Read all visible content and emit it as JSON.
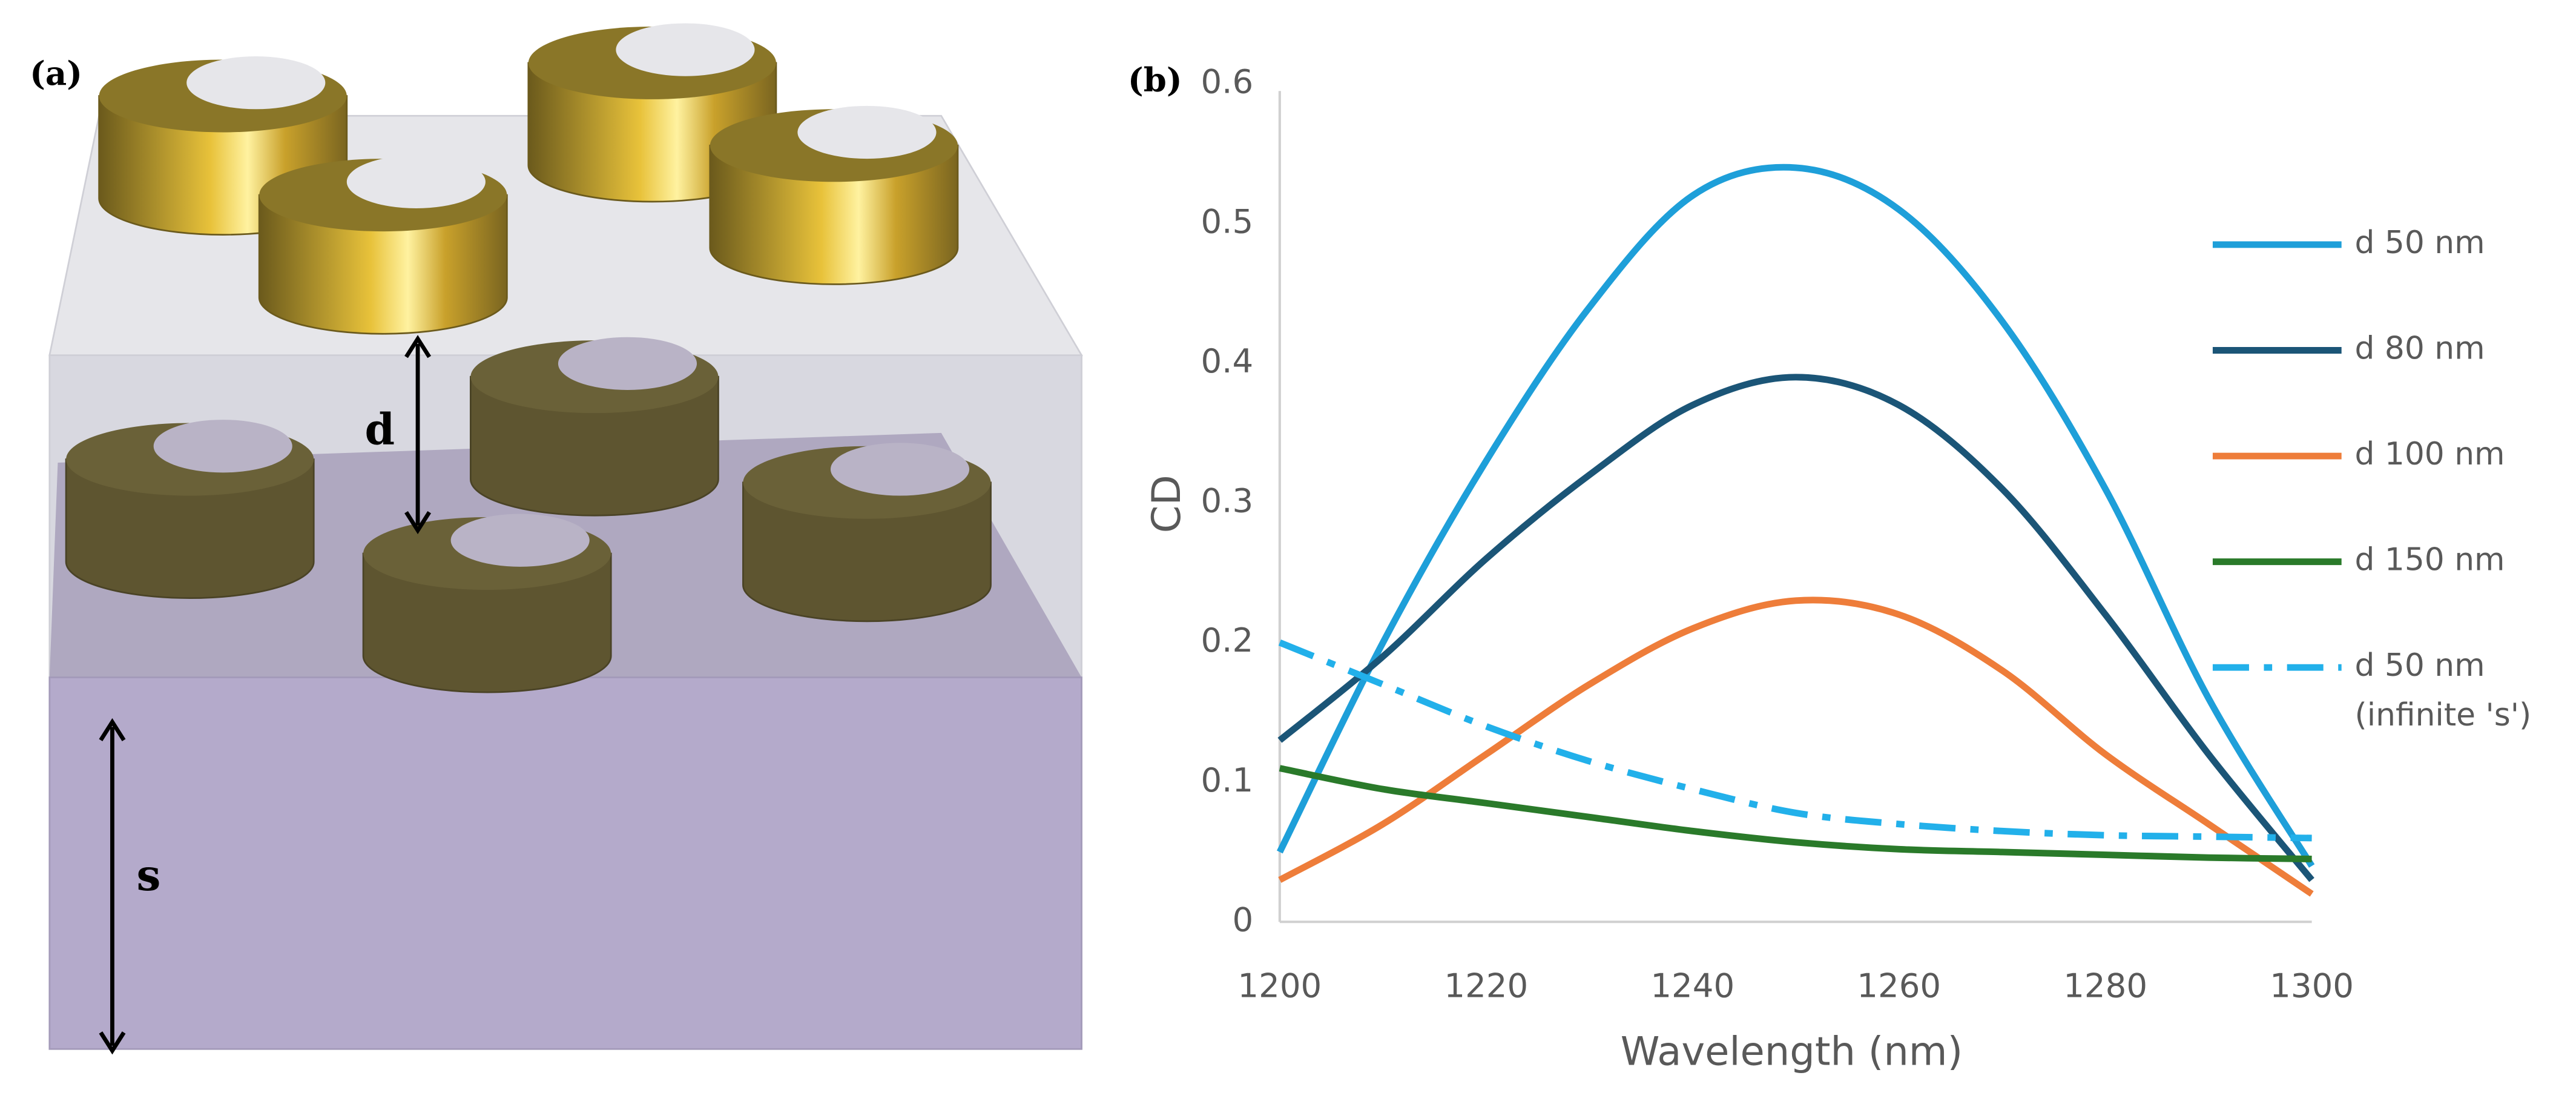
{
  "illustration": {
    "label": "(a)",
    "annotations": [
      "d",
      "s"
    ]
  },
  "chart_data": {
    "type": "line",
    "panel_label": "(b)",
    "x_label": "Wavelength (nm)",
    "y_label": "CD",
    "x": [
      1200,
      1210,
      1220,
      1230,
      1240,
      1250,
      1260,
      1270,
      1280,
      1290,
      1300
    ],
    "xlim": [
      1200,
      1300
    ],
    "xticks": [
      1200,
      1220,
      1240,
      1260,
      1280,
      1300
    ],
    "ylim": [
      0,
      0.6
    ],
    "yticks": [
      0,
      0.1,
      0.2,
      0.3,
      0.4,
      0.5,
      0.6
    ],
    "grid": false,
    "legend": "right",
    "series": [
      {
        "name": "d 50 nm",
        "color": "#1e9fd9",
        "style": "solid",
        "values": [
          0.05,
          0.2,
          0.33,
          0.44,
          0.52,
          0.54,
          0.51,
          0.43,
          0.31,
          0.16,
          0.04
        ]
      },
      {
        "name": "d 80 nm",
        "color": "#1b5577",
        "style": "solid",
        "values": [
          0.13,
          0.19,
          0.26,
          0.32,
          0.37,
          0.39,
          0.37,
          0.31,
          0.22,
          0.12,
          0.03
        ]
      },
      {
        "name": "d 100 nm",
        "color": "#ee7d3a",
        "style": "solid",
        "values": [
          0.03,
          0.07,
          0.12,
          0.17,
          0.21,
          0.23,
          0.22,
          0.18,
          0.12,
          0.07,
          0.02
        ]
      },
      {
        "name": "d 150 nm",
        "color": "#2a7a2a",
        "style": "solid",
        "values": [
          0.11,
          0.095,
          0.085,
          0.075,
          0.065,
          0.057,
          0.052,
          0.05,
          0.048,
          0.046,
          0.045
        ]
      },
      {
        "name": "d 50 nm",
        "legend_note": "(infinite 's')",
        "color": "#22b0ea",
        "style": "dashdot",
        "values": [
          0.2,
          0.17,
          0.14,
          0.115,
          0.095,
          0.078,
          0.07,
          0.065,
          0.062,
          0.061,
          0.06
        ]
      }
    ]
  }
}
